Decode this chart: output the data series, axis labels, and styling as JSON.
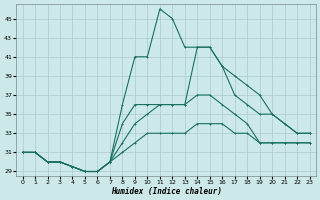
{
  "xlabel": "Humidex (Indice chaleur)",
  "background_color": "#cce8e8",
  "grid_color": "#aacccc",
  "line_color": "#1a7060",
  "xlim": [
    -0.5,
    23.5
  ],
  "ylim": [
    28.5,
    46.5
  ],
  "xticks": [
    0,
    1,
    2,
    3,
    4,
    5,
    6,
    7,
    8,
    9,
    10,
    11,
    12,
    13,
    14,
    15,
    16,
    17,
    18,
    19,
    20,
    21,
    22,
    23
  ],
  "yticks": [
    29,
    31,
    33,
    35,
    37,
    39,
    41,
    43,
    45
  ],
  "lines": [
    {
      "x": [
        0,
        1,
        2,
        3,
        4,
        5,
        6,
        7,
        8,
        9,
        10,
        11,
        12,
        13,
        14,
        15,
        16,
        17,
        18,
        19,
        20,
        21,
        22,
        23
      ],
      "y": [
        31,
        31,
        30,
        30,
        29.5,
        29,
        29,
        30,
        36,
        41,
        41,
        46,
        45,
        42,
        42,
        42,
        40,
        39,
        38,
        37,
        35,
        34,
        33,
        33
      ]
    },
    {
      "x": [
        0,
        1,
        2,
        3,
        4,
        5,
        6,
        7,
        8,
        9,
        10,
        11,
        12,
        13,
        14,
        15,
        16,
        17,
        18,
        19,
        20,
        21,
        22,
        23
      ],
      "y": [
        31,
        31,
        30,
        30,
        29.5,
        29,
        29,
        30,
        34,
        36,
        36,
        36,
        36,
        36,
        42,
        42,
        40,
        37,
        36,
        35,
        35,
        34,
        33,
        33
      ]
    },
    {
      "x": [
        0,
        1,
        2,
        3,
        4,
        5,
        6,
        7,
        8,
        9,
        10,
        11,
        12,
        13,
        14,
        15,
        16,
        17,
        18,
        19,
        20,
        21,
        22,
        23
      ],
      "y": [
        31,
        31,
        30,
        30,
        29.5,
        29,
        29,
        30,
        32,
        34,
        35,
        36,
        36,
        36,
        37,
        37,
        36,
        35,
        34,
        32,
        32,
        32,
        32,
        32
      ]
    },
    {
      "x": [
        0,
        1,
        2,
        3,
        4,
        5,
        6,
        7,
        8,
        9,
        10,
        11,
        12,
        13,
        14,
        15,
        16,
        17,
        18,
        19,
        20,
        21,
        22,
        23
      ],
      "y": [
        31,
        31,
        30,
        30,
        29.5,
        29,
        29,
        30,
        31,
        32,
        33,
        33,
        33,
        33,
        34,
        34,
        34,
        33,
        33,
        32,
        32,
        32,
        32,
        32
      ]
    }
  ]
}
